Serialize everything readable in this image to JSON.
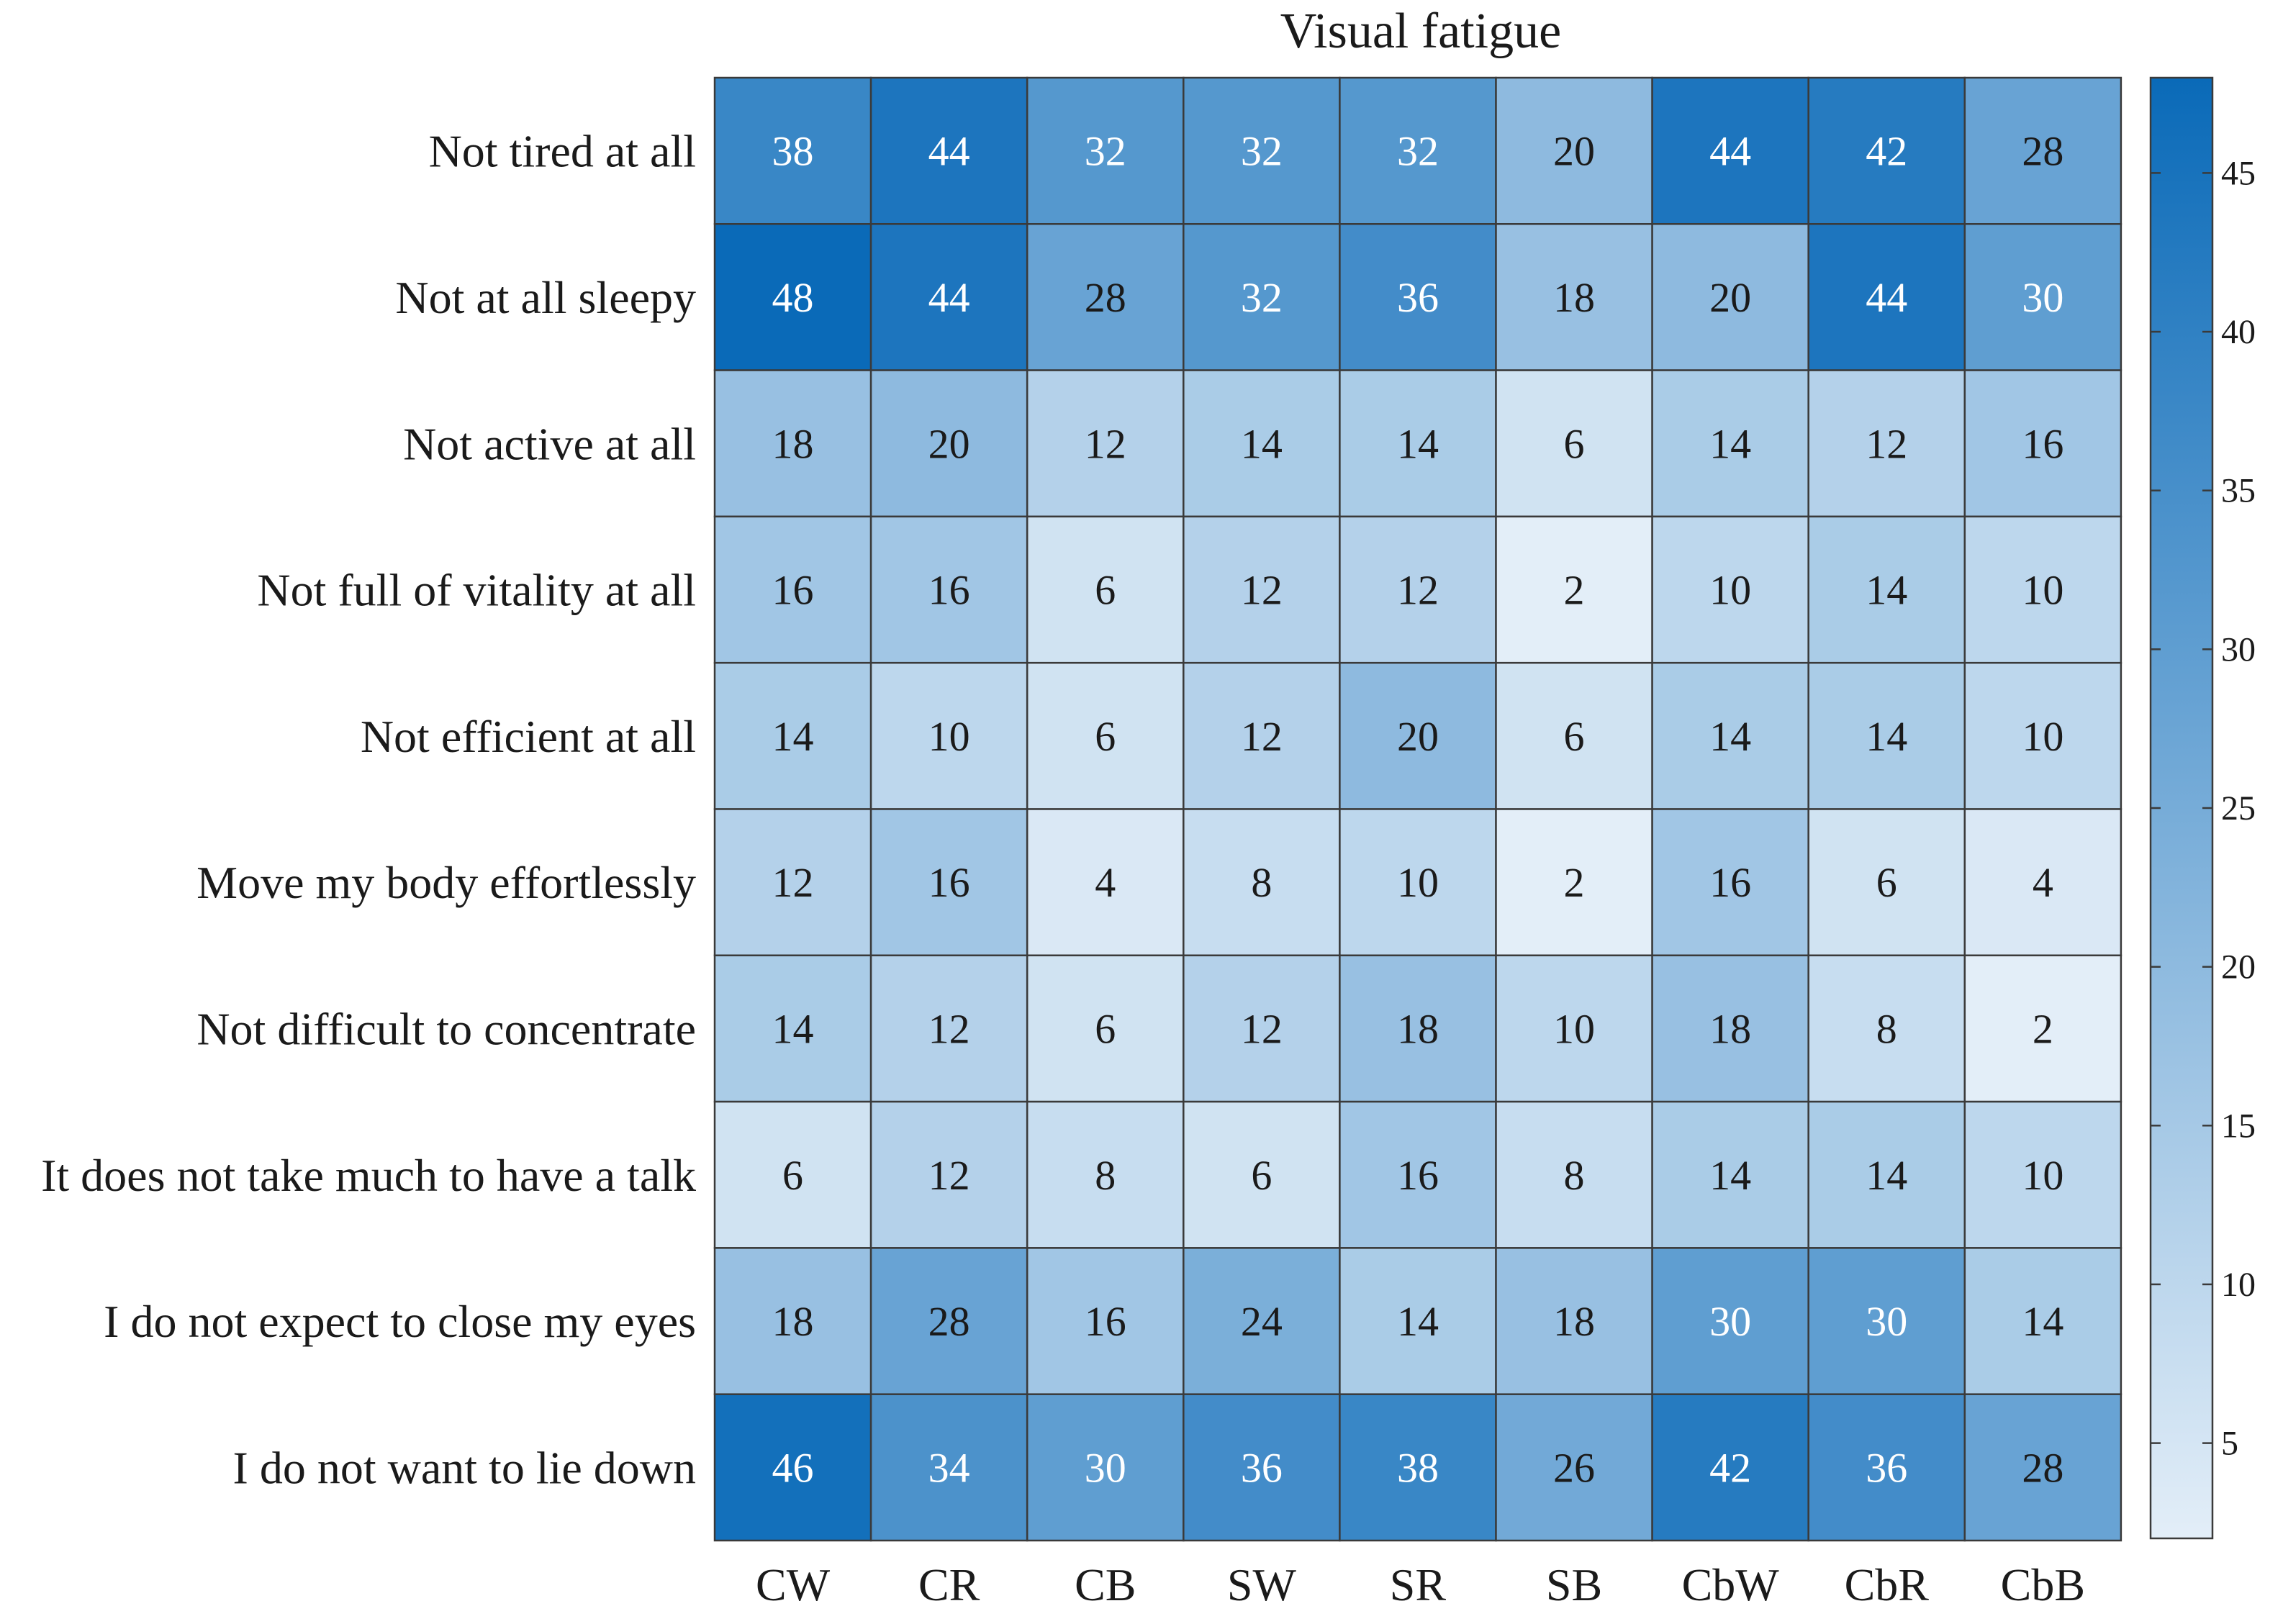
{
  "chart_data": {
    "type": "heatmap",
    "title": "Visual fatigue",
    "columns": [
      "CW",
      "CR",
      "CB",
      "SW",
      "SR",
      "SB",
      "CbW",
      "CbR",
      "CbB"
    ],
    "rows": [
      "Not tired at all",
      "Not at all sleepy",
      "Not active at all",
      "Not full of vitality at all",
      "Not efficient at all",
      "Move my body effortlessly",
      "Not difficult to concentrate",
      "It does not take much to have a talk",
      "I do not expect to close my eyes",
      "I do not want to lie down"
    ],
    "values": [
      [
        38,
        44,
        32,
        32,
        32,
        20,
        44,
        42,
        28
      ],
      [
        48,
        44,
        28,
        32,
        36,
        18,
        20,
        44,
        30
      ],
      [
        18,
        20,
        12,
        14,
        14,
        6,
        14,
        12,
        16
      ],
      [
        16,
        16,
        6,
        12,
        12,
        2,
        10,
        14,
        10
      ],
      [
        14,
        10,
        6,
        12,
        20,
        6,
        14,
        14,
        10
      ],
      [
        12,
        16,
        4,
        8,
        10,
        2,
        16,
        6,
        4
      ],
      [
        14,
        12,
        6,
        12,
        18,
        10,
        18,
        8,
        2
      ],
      [
        6,
        12,
        8,
        6,
        16,
        8,
        14,
        14,
        10
      ],
      [
        18,
        28,
        16,
        24,
        14,
        18,
        30,
        30,
        14
      ],
      [
        46,
        34,
        30,
        36,
        38,
        26,
        42,
        36,
        28
      ]
    ],
    "colorbar": {
      "min": 2,
      "max": 48,
      "ticks": [
        5,
        10,
        15,
        20,
        25,
        30,
        35,
        40,
        45
      ]
    },
    "colors": {
      "low": "#e3eef8",
      "high": "#0a6ab8",
      "grid": "#3a3a3a",
      "text_light": "#ffffff",
      "text_dark": "#1a1a1a"
    }
  }
}
